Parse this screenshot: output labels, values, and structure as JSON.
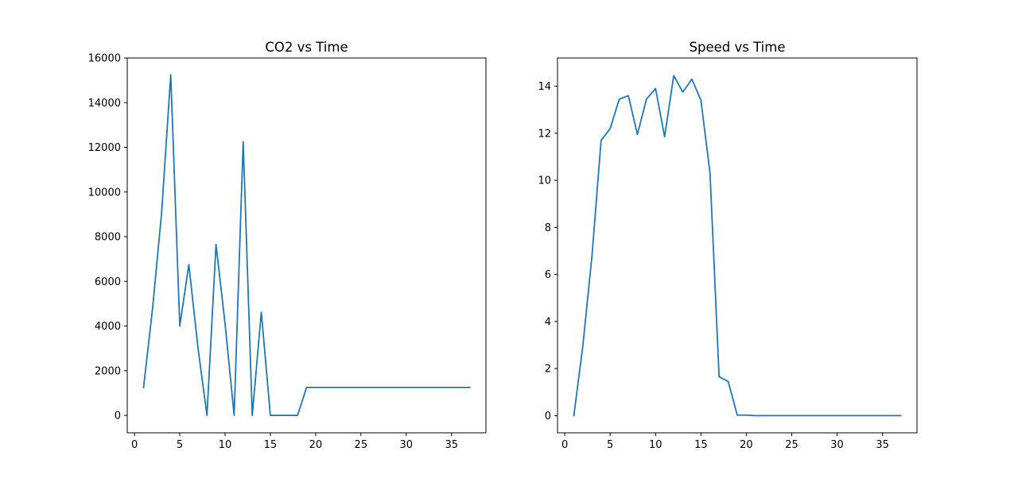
{
  "colors": {
    "series": "#1f77b4",
    "axes": "#000000",
    "background": "#ffffff"
  },
  "chart_data": [
    {
      "type": "line",
      "title": "CO2 vs Time",
      "xlabel": "",
      "ylabel": "",
      "grid": false,
      "xlim": [
        -0.8,
        38.8
      ],
      "ylim": [
        -780,
        16000
      ],
      "xticks": [
        0,
        5,
        10,
        15,
        20,
        25,
        30,
        35
      ],
      "yticks": [
        0,
        2000,
        4000,
        6000,
        8000,
        10000,
        12000,
        14000,
        16000
      ],
      "x": [
        1,
        2,
        3,
        4,
        5,
        6,
        7,
        8,
        9,
        10,
        11,
        12,
        13,
        14,
        15,
        16,
        17,
        18,
        19,
        20,
        21,
        22,
        23,
        24,
        25,
        26,
        27,
        28,
        29,
        30,
        31,
        32,
        33,
        34,
        35,
        36,
        37
      ],
      "series": [
        {
          "values": [
            1250,
            4800,
            9100,
            15250,
            4000,
            6750,
            3050,
            0,
            7650,
            4100,
            0,
            12250,
            0,
            4620,
            0,
            0,
            0,
            0,
            1250,
            1250,
            1250,
            1250,
            1250,
            1250,
            1250,
            1250,
            1250,
            1250,
            1250,
            1250,
            1250,
            1250,
            1250,
            1250,
            1250,
            1250,
            1250
          ]
        }
      ]
    },
    {
      "type": "line",
      "title": "Speed vs Time",
      "xlabel": "",
      "ylabel": "",
      "grid": false,
      "xlim": [
        -0.8,
        38.8
      ],
      "ylim": [
        -0.73,
        15.2
      ],
      "xticks": [
        0,
        5,
        10,
        15,
        20,
        25,
        30,
        35
      ],
      "yticks": [
        0,
        2,
        4,
        6,
        8,
        10,
        12,
        14
      ],
      "x": [
        1,
        2,
        3,
        4,
        5,
        6,
        7,
        8,
        9,
        10,
        11,
        12,
        13,
        14,
        15,
        16,
        17,
        18,
        19,
        20,
        21,
        22,
        23,
        24,
        25,
        26,
        27,
        28,
        29,
        30,
        31,
        32,
        33,
        34,
        35,
        36,
        37
      ],
      "series": [
        {
          "values": [
            0,
            3.0,
            6.8,
            11.7,
            12.2,
            13.45,
            13.6,
            11.95,
            13.45,
            13.9,
            11.85,
            14.45,
            13.75,
            14.3,
            13.4,
            10.3,
            1.65,
            1.45,
            0.02,
            0.02,
            0,
            0,
            0,
            0,
            0,
            0,
            0,
            0,
            0,
            0,
            0,
            0,
            0,
            0,
            0,
            0,
            0
          ]
        }
      ]
    }
  ]
}
